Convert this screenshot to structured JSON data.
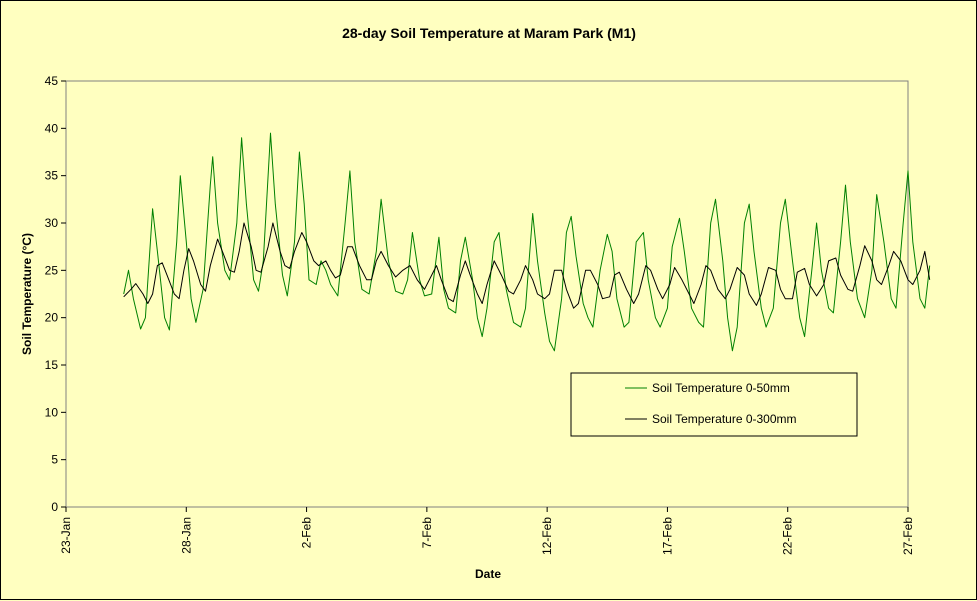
{
  "chart_data": {
    "type": "line",
    "title": "28-day Soil Temperature at Maram Park (M1)",
    "xlabel": "Date",
    "ylabel": "Soil Temperature (°C)",
    "xlim": [
      0,
      35
    ],
    "ylim": [
      0,
      45
    ],
    "x_unit": "days after 23-Jan",
    "x_ticks": [
      {
        "x": 0,
        "label": "23-Jan"
      },
      {
        "x": 5,
        "label": "28-Jan"
      },
      {
        "x": 10,
        "label": "2-Feb"
      },
      {
        "x": 15,
        "label": "7-Feb"
      },
      {
        "x": 20,
        "label": "12-Feb"
      },
      {
        "x": 25,
        "label": "17-Feb"
      },
      {
        "x": 30,
        "label": "22-Feb"
      },
      {
        "x": 35,
        "label": "27-Feb"
      }
    ],
    "y_ticks": [
      0,
      5,
      10,
      15,
      20,
      25,
      30,
      35,
      40,
      45
    ],
    "grid": false,
    "legend": {
      "position": "lower-right",
      "entries": [
        "Soil Temperature 0-50mm",
        "Soil Temperature 0-300mm"
      ]
    },
    "series": [
      {
        "name": "Soil Temperature 0-50mm",
        "color": "#008000",
        "points": [
          [
            2.4,
            22.5
          ],
          [
            2.6,
            25
          ],
          [
            2.8,
            22
          ],
          [
            3.1,
            18.8
          ],
          [
            3.3,
            20
          ],
          [
            3.6,
            31.5
          ],
          [
            3.8,
            27
          ],
          [
            4.1,
            20
          ],
          [
            4.3,
            18.7
          ],
          [
            4.6,
            28
          ],
          [
            4.75,
            35
          ],
          [
            5.0,
            28
          ],
          [
            5.2,
            22
          ],
          [
            5.4,
            19.5
          ],
          [
            5.7,
            23
          ],
          [
            6.0,
            34
          ],
          [
            6.1,
            37
          ],
          [
            6.3,
            30
          ],
          [
            6.6,
            25
          ],
          [
            6.8,
            24
          ],
          [
            7.1,
            30
          ],
          [
            7.3,
            39
          ],
          [
            7.5,
            32
          ],
          [
            7.8,
            24
          ],
          [
            8.0,
            22.8
          ],
          [
            8.2,
            26
          ],
          [
            8.5,
            39.5
          ],
          [
            8.7,
            32
          ],
          [
            9.0,
            24.5
          ],
          [
            9.2,
            22.3
          ],
          [
            9.5,
            28
          ],
          [
            9.7,
            37.5
          ],
          [
            9.9,
            32
          ],
          [
            10.1,
            24
          ],
          [
            10.4,
            23.5
          ],
          [
            10.6,
            26
          ],
          [
            10.8,
            25
          ],
          [
            11.0,
            23.5
          ],
          [
            11.3,
            22.3
          ],
          [
            11.6,
            30
          ],
          [
            11.8,
            35.5
          ],
          [
            12.0,
            28
          ],
          [
            12.3,
            23
          ],
          [
            12.6,
            22.5
          ],
          [
            12.9,
            27
          ],
          [
            13.1,
            32.5
          ],
          [
            13.4,
            26
          ],
          [
            13.7,
            22.8
          ],
          [
            14.0,
            22.5
          ],
          [
            14.2,
            24
          ],
          [
            14.4,
            29
          ],
          [
            14.7,
            24
          ],
          [
            14.9,
            22.3
          ],
          [
            15.2,
            22.5
          ],
          [
            15.5,
            28.5
          ],
          [
            15.7,
            23
          ],
          [
            15.9,
            21
          ],
          [
            16.2,
            20.5
          ],
          [
            16.4,
            26
          ],
          [
            16.6,
            28.5
          ],
          [
            16.9,
            24
          ],
          [
            17.1,
            20
          ],
          [
            17.3,
            18
          ],
          [
            17.5,
            21
          ],
          [
            17.8,
            28
          ],
          [
            18.0,
            29
          ],
          [
            18.3,
            23
          ],
          [
            18.6,
            19.5
          ],
          [
            18.9,
            19
          ],
          [
            19.1,
            21
          ],
          [
            19.4,
            31
          ],
          [
            19.6,
            26
          ],
          [
            19.9,
            20.5
          ],
          [
            20.1,
            17.5
          ],
          [
            20.3,
            16.5
          ],
          [
            20.6,
            22
          ],
          [
            20.8,
            29
          ],
          [
            21.0,
            30.7
          ],
          [
            21.2,
            26.5
          ],
          [
            21.5,
            21.5
          ],
          [
            21.7,
            20
          ],
          [
            21.9,
            19
          ],
          [
            22.2,
            25
          ],
          [
            22.5,
            28.8
          ],
          [
            22.7,
            27
          ],
          [
            22.9,
            22
          ],
          [
            23.2,
            19
          ],
          [
            23.4,
            19.5
          ],
          [
            23.7,
            28
          ],
          [
            24.0,
            29
          ],
          [
            24.2,
            24
          ],
          [
            24.5,
            20
          ],
          [
            24.7,
            19
          ],
          [
            25.0,
            21
          ],
          [
            25.2,
            27.5
          ],
          [
            25.5,
            30.5
          ],
          [
            25.7,
            27
          ],
          [
            26.0,
            21
          ],
          [
            26.3,
            19.5
          ],
          [
            26.5,
            19
          ],
          [
            26.8,
            30
          ],
          [
            27.0,
            32.5
          ],
          [
            27.3,
            26
          ],
          [
            27.5,
            20
          ],
          [
            27.7,
            16.5
          ],
          [
            27.9,
            19
          ],
          [
            28.2,
            30
          ],
          [
            28.4,
            32
          ],
          [
            28.6,
            27
          ],
          [
            28.9,
            21
          ],
          [
            29.1,
            19
          ],
          [
            29.4,
            21
          ],
          [
            29.7,
            30
          ],
          [
            29.9,
            32.5
          ],
          [
            30.2,
            26
          ],
          [
            30.5,
            20
          ],
          [
            30.7,
            18
          ],
          [
            31.0,
            25
          ],
          [
            31.2,
            30
          ],
          [
            31.4,
            25
          ],
          [
            31.7,
            21
          ],
          [
            31.9,
            20.5
          ],
          [
            32.2,
            28
          ],
          [
            32.4,
            34
          ],
          [
            32.6,
            28
          ],
          [
            32.9,
            22
          ],
          [
            33.2,
            20
          ],
          [
            33.5,
            25
          ],
          [
            33.7,
            33
          ],
          [
            34.0,
            28
          ],
          [
            34.3,
            22
          ],
          [
            34.5,
            21
          ],
          [
            34.8,
            30
          ],
          [
            35.0,
            35.5
          ],
          [
            35.2,
            28
          ],
          [
            35.5,
            22
          ],
          [
            35.7,
            21
          ],
          [
            35.9,
            25.5
          ]
        ]
      },
      {
        "name": "Soil Temperature 0-300mm",
        "color": "#000000",
        "points": [
          [
            2.4,
            22.2
          ],
          [
            2.7,
            23
          ],
          [
            2.9,
            23.6
          ],
          [
            3.2,
            22.5
          ],
          [
            3.4,
            21.5
          ],
          [
            3.6,
            22.5
          ],
          [
            3.8,
            25.5
          ],
          [
            4.0,
            25.8
          ],
          [
            4.2,
            24.5
          ],
          [
            4.5,
            22.5
          ],
          [
            4.7,
            22
          ],
          [
            4.9,
            25
          ],
          [
            5.1,
            27.3
          ],
          [
            5.3,
            26
          ],
          [
            5.6,
            23.5
          ],
          [
            5.8,
            22.8
          ],
          [
            6.0,
            25.5
          ],
          [
            6.3,
            28.3
          ],
          [
            6.5,
            27
          ],
          [
            6.8,
            25
          ],
          [
            7.0,
            24.8
          ],
          [
            7.2,
            27
          ],
          [
            7.4,
            30
          ],
          [
            7.7,
            27.5
          ],
          [
            7.9,
            25
          ],
          [
            8.1,
            24.8
          ],
          [
            8.4,
            27.5
          ],
          [
            8.6,
            30
          ],
          [
            8.9,
            27
          ],
          [
            9.1,
            25.5
          ],
          [
            9.3,
            25.2
          ],
          [
            9.5,
            27
          ],
          [
            9.8,
            29
          ],
          [
            10.0,
            28
          ],
          [
            10.3,
            26
          ],
          [
            10.5,
            25.5
          ],
          [
            10.8,
            26
          ],
          [
            11.0,
            25
          ],
          [
            11.2,
            24.2
          ],
          [
            11.4,
            24.5
          ],
          [
            11.7,
            27.5
          ],
          [
            11.9,
            27.5
          ],
          [
            12.2,
            25.5
          ],
          [
            12.5,
            24
          ],
          [
            12.7,
            24
          ],
          [
            12.9,
            26
          ],
          [
            13.1,
            27
          ],
          [
            13.4,
            25.5
          ],
          [
            13.7,
            24.3
          ],
          [
            14.0,
            25
          ],
          [
            14.3,
            25.5
          ],
          [
            14.6,
            24
          ],
          [
            14.9,
            23
          ],
          [
            15.2,
            24.5
          ],
          [
            15.4,
            25.5
          ],
          [
            15.6,
            24
          ],
          [
            15.9,
            22
          ],
          [
            16.1,
            21.7
          ],
          [
            16.4,
            24.5
          ],
          [
            16.6,
            26
          ],
          [
            16.8,
            24.5
          ],
          [
            17.1,
            22.5
          ],
          [
            17.3,
            21.5
          ],
          [
            17.5,
            23.5
          ],
          [
            17.8,
            26
          ],
          [
            18.1,
            24.5
          ],
          [
            18.4,
            22.8
          ],
          [
            18.6,
            22.5
          ],
          [
            18.9,
            24
          ],
          [
            19.1,
            25.5
          ],
          [
            19.4,
            24
          ],
          [
            19.6,
            22.5
          ],
          [
            19.9,
            22
          ],
          [
            20.1,
            22.5
          ],
          [
            20.3,
            25
          ],
          [
            20.6,
            25
          ],
          [
            20.8,
            23
          ],
          [
            21.1,
            21
          ],
          [
            21.3,
            21.5
          ],
          [
            21.6,
            25
          ],
          [
            21.8,
            25
          ],
          [
            22.1,
            23.5
          ],
          [
            22.3,
            22
          ],
          [
            22.6,
            22.2
          ],
          [
            22.8,
            24.5
          ],
          [
            23.0,
            24.8
          ],
          [
            23.3,
            23
          ],
          [
            23.6,
            21.5
          ],
          [
            23.8,
            22.5
          ],
          [
            24.1,
            25.5
          ],
          [
            24.3,
            25
          ],
          [
            24.6,
            23
          ],
          [
            24.8,
            22
          ],
          [
            25.1,
            23.5
          ],
          [
            25.3,
            25.3
          ],
          [
            25.6,
            24
          ],
          [
            25.9,
            22.5
          ],
          [
            26.1,
            21.5
          ],
          [
            26.4,
            23.5
          ],
          [
            26.6,
            25.5
          ],
          [
            26.8,
            25
          ],
          [
            27.1,
            23
          ],
          [
            27.4,
            22
          ],
          [
            27.6,
            23
          ],
          [
            27.9,
            25.3
          ],
          [
            28.2,
            24.5
          ],
          [
            28.4,
            22.5
          ],
          [
            28.7,
            21.3
          ],
          [
            28.9,
            22.5
          ],
          [
            29.2,
            25.3
          ],
          [
            29.5,
            25
          ],
          [
            29.7,
            23
          ],
          [
            29.9,
            22
          ],
          [
            30.2,
            22
          ],
          [
            30.4,
            24.8
          ],
          [
            30.7,
            25.2
          ],
          [
            30.9,
            23.5
          ],
          [
            31.2,
            22.3
          ],
          [
            31.5,
            23.5
          ],
          [
            31.7,
            26
          ],
          [
            32.0,
            26.3
          ],
          [
            32.2,
            24.5
          ],
          [
            32.5,
            23
          ],
          [
            32.7,
            22.8
          ],
          [
            33.0,
            25.5
          ],
          [
            33.2,
            27.6
          ],
          [
            33.5,
            26
          ],
          [
            33.7,
            24
          ],
          [
            33.9,
            23.5
          ],
          [
            34.2,
            25.5
          ],
          [
            34.4,
            27
          ],
          [
            34.7,
            26
          ],
          [
            35.0,
            24
          ],
          [
            35.2,
            23.5
          ],
          [
            35.5,
            25
          ],
          [
            35.7,
            27
          ],
          [
            35.9,
            24
          ]
        ]
      }
    ]
  }
}
